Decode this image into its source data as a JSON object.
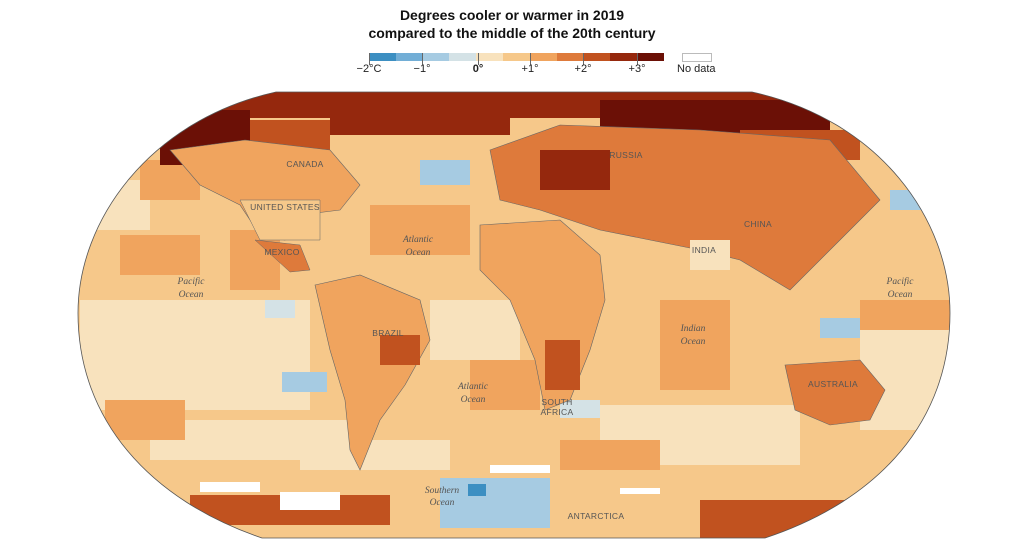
{
  "title_line1": "Degrees cooler or warmer in 2019",
  "title_line2": "compared to the middle of the 20th century",
  "legend": {
    "labels": [
      "−2°C",
      "−1°",
      "0°",
      "+1°",
      "+2°",
      "+3°"
    ],
    "no_data": "No data",
    "colors": [
      "#3c8fc2",
      "#72aed6",
      "#a6cbe2",
      "#d4e2e6",
      "#f8e2bd",
      "#f6c88a",
      "#f0a45e",
      "#de7a3b",
      "#c1521f",
      "#95280d",
      "#6b1006"
    ]
  },
  "labels": {
    "canada": "CANADA",
    "united_states": "UNITED STATES",
    "mexico": "MEXICO",
    "brazil": "BRAZIL",
    "russia": "RUSSIA",
    "china": "CHINA",
    "india": "INDIA",
    "australia": "AUSTRALIA",
    "south_africa_1": "SOUTH",
    "south_africa_2": "AFRICA",
    "antarctica": "ANTARCTICA",
    "pacific_w_1": "Pacific",
    "pacific_w_2": "Ocean",
    "pacific_e_1": "Pacific",
    "pacific_e_2": "Ocean",
    "atlantic_n_1": "Atlantic",
    "atlantic_n_2": "Ocean",
    "atlantic_s_1": "Atlantic",
    "atlantic_s_2": "Ocean",
    "indian_1": "Indian",
    "indian_2": "Ocean",
    "southern_1": "Southern",
    "southern_2": "Ocean"
  }
}
